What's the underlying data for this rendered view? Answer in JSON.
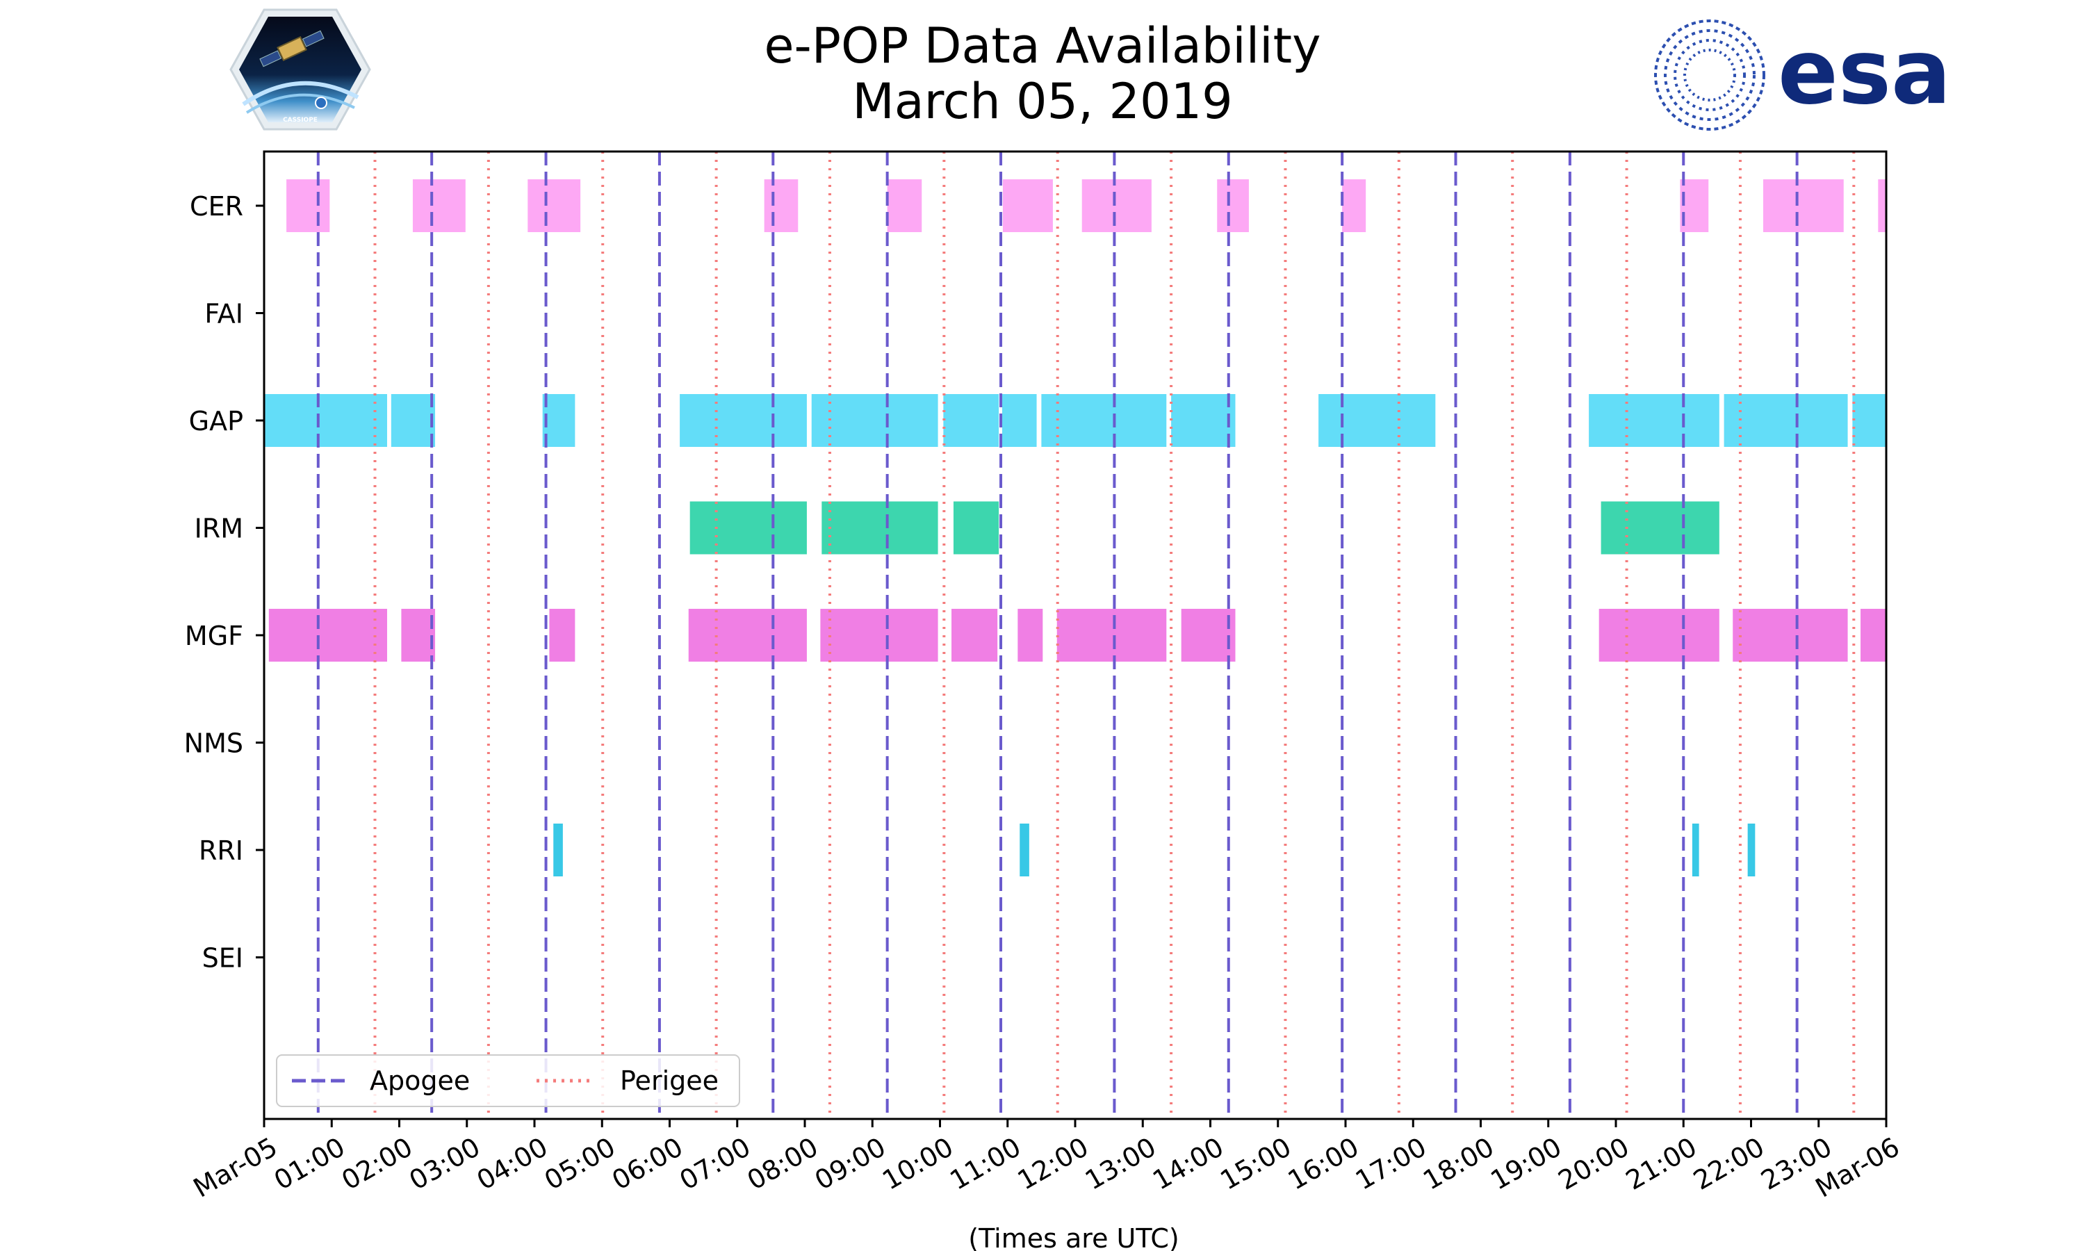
{
  "header": {
    "title_line1": "e-POP Data Availability",
    "title_line2": "March 05, 2019"
  },
  "logos": {
    "left": {
      "name": "CASSIOPE mission patch",
      "text": "CASSIOPE"
    },
    "right": {
      "name": "ESA logo",
      "text": "esa",
      "color": "#0f2a7a"
    }
  },
  "chart_data": {
    "type": "timeline",
    "title": "e-POP Data Availability\nMarch 05, 2019",
    "xlabel": "(Times are UTC)",
    "ylabel": "",
    "xlim_hours": [
      0,
      24
    ],
    "x_ticks": [
      {
        "hour": 0,
        "label": "Mar-05"
      },
      {
        "hour": 1,
        "label": "01:00"
      },
      {
        "hour": 2,
        "label": "02:00"
      },
      {
        "hour": 3,
        "label": "03:00"
      },
      {
        "hour": 4,
        "label": "04:00"
      },
      {
        "hour": 5,
        "label": "05:00"
      },
      {
        "hour": 6,
        "label": "06:00"
      },
      {
        "hour": 7,
        "label": "07:00"
      },
      {
        "hour": 8,
        "label": "08:00"
      },
      {
        "hour": 9,
        "label": "09:00"
      },
      {
        "hour": 10,
        "label": "10:00"
      },
      {
        "hour": 11,
        "label": "11:00"
      },
      {
        "hour": 12,
        "label": "12:00"
      },
      {
        "hour": 13,
        "label": "13:00"
      },
      {
        "hour": 14,
        "label": "14:00"
      },
      {
        "hour": 15,
        "label": "15:00"
      },
      {
        "hour": 16,
        "label": "16:00"
      },
      {
        "hour": 17,
        "label": "17:00"
      },
      {
        "hour": 18,
        "label": "18:00"
      },
      {
        "hour": 19,
        "label": "19:00"
      },
      {
        "hour": 20,
        "label": "20:00"
      },
      {
        "hour": 21,
        "label": "21:00"
      },
      {
        "hour": 22,
        "label": "22:00"
      },
      {
        "hour": 23,
        "label": "23:00"
      },
      {
        "hour": 24,
        "label": "Mar-06"
      }
    ],
    "instruments": [
      "CER",
      "FAI",
      "GAP",
      "IRM",
      "MGF",
      "NMS",
      "RRI",
      "SEI"
    ],
    "apogee_hours": [
      0.8,
      2.48,
      4.17,
      5.85,
      7.53,
      9.22,
      10.9,
      12.58,
      14.27,
      15.95,
      17.63,
      19.32,
      21.0,
      22.68
    ],
    "perigee_hours": [
      1.64,
      3.32,
      5.01,
      6.69,
      8.37,
      10.06,
      11.74,
      13.42,
      15.11,
      16.79,
      18.47,
      20.16,
      21.84,
      23.52
    ],
    "series": [
      {
        "name": "CER",
        "color": "#fda8f4",
        "intervals": [
          [
            0.33,
            0.97
          ],
          [
            2.2,
            2.98
          ],
          [
            3.9,
            4.68
          ],
          [
            7.4,
            7.9
          ],
          [
            9.22,
            9.73
          ],
          [
            10.93,
            11.67
          ],
          [
            12.1,
            13.13
          ],
          [
            14.1,
            14.57
          ],
          [
            15.95,
            16.3
          ],
          [
            20.95,
            21.37
          ],
          [
            22.18,
            23.37
          ],
          [
            23.88,
            24.0
          ]
        ]
      },
      {
        "name": "FAI",
        "color": "#7ee8c4",
        "intervals": []
      },
      {
        "name": "GAP",
        "color": "#63ddf8",
        "intervals": [
          [
            0.0,
            1.82
          ],
          [
            1.88,
            2.53
          ],
          [
            4.12,
            4.6
          ],
          [
            6.15,
            8.03
          ],
          [
            8.1,
            9.97
          ],
          [
            10.05,
            10.87
          ],
          [
            10.92,
            11.43
          ],
          [
            11.5,
            13.35
          ],
          [
            13.42,
            14.37
          ],
          [
            15.6,
            17.33
          ],
          [
            19.6,
            21.53
          ],
          [
            21.6,
            23.43
          ],
          [
            23.5,
            24.0
          ]
        ]
      },
      {
        "name": "IRM",
        "color": "#3dd6ae",
        "intervals": [
          [
            6.3,
            8.03
          ],
          [
            8.25,
            9.97
          ],
          [
            10.2,
            10.87
          ],
          [
            19.78,
            21.53
          ]
        ]
      },
      {
        "name": "MGF",
        "color": "#f07fe4",
        "intervals": [
          [
            0.07,
            1.82
          ],
          [
            2.03,
            2.53
          ],
          [
            4.22,
            4.6
          ],
          [
            6.28,
            8.03
          ],
          [
            8.23,
            9.97
          ],
          [
            10.17,
            10.85
          ],
          [
            11.15,
            11.52
          ],
          [
            11.73,
            13.35
          ],
          [
            13.57,
            14.37
          ],
          [
            19.75,
            21.53
          ],
          [
            21.73,
            23.43
          ],
          [
            23.62,
            24.0
          ]
        ]
      },
      {
        "name": "NMS",
        "color": "#7ec8ff",
        "intervals": []
      },
      {
        "name": "RRI",
        "color": "#38c8e6",
        "intervals": [
          [
            4.28,
            4.42
          ],
          [
            11.18,
            11.32
          ],
          [
            21.13,
            21.23
          ],
          [
            21.95,
            22.06
          ]
        ]
      },
      {
        "name": "SEI",
        "color": "#ffd37e",
        "intervals": []
      }
    ],
    "legend": {
      "location": "lower-left",
      "entries": [
        {
          "label": "Apogee",
          "style": "dashed",
          "color": "#6a5acd"
        },
        {
          "label": "Perigee",
          "style": "dotted",
          "color": "#f47c7c"
        }
      ]
    },
    "grid": false
  }
}
